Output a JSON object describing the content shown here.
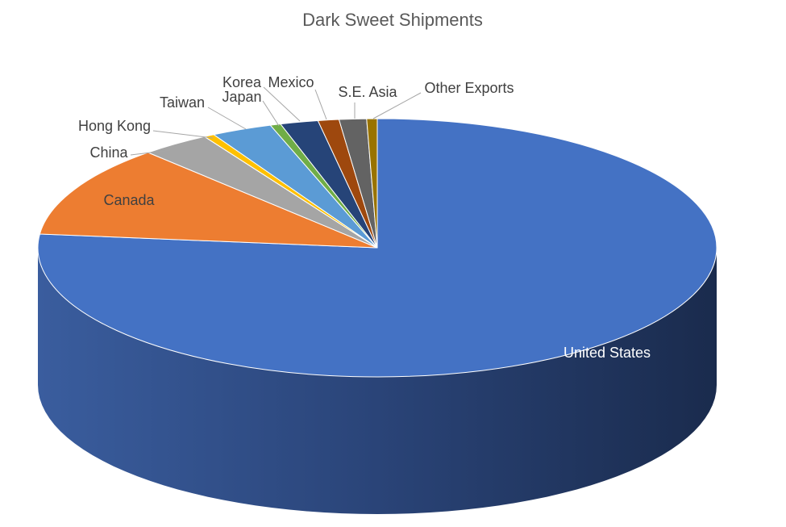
{
  "chart_data": {
    "type": "pie3d",
    "title": "Dark Sweet Shipments",
    "categories": [
      "United States",
      "Canada",
      "China",
      "Hong Kong",
      "Taiwan",
      "Japan",
      "Korea",
      "Mexico",
      "S.E. Asia",
      "Other Exports"
    ],
    "values": [
      76.7,
      11.5,
      3.3,
      0.5,
      2.9,
      0.5,
      1.8,
      1.0,
      1.3,
      0.5
    ],
    "colors": [
      "#4472c4",
      "#ed7d31",
      "#a5a5a5",
      "#ffc000",
      "#5b9bd5",
      "#70ad47",
      "#264478",
      "#9e480e",
      "#636363",
      "#997300"
    ]
  }
}
